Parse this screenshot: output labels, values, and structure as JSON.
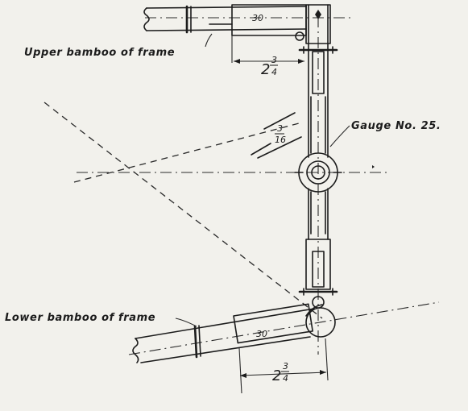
{
  "labels": {
    "upper": "Upper bamboo of frame",
    "lower": "Lower bamboo of frame",
    "gauge": "Gauge No. 25."
  },
  "dimensions": {
    "top_whole": "2",
    "top_fraction_num": "3",
    "top_fraction_den": "4",
    "bottom_whole": "2",
    "bottom_fraction_num": "3",
    "bottom_fraction_den": "4",
    "side_num": "3",
    "side_den": "16",
    "top_small": "30",
    "bottom_small": "30"
  }
}
